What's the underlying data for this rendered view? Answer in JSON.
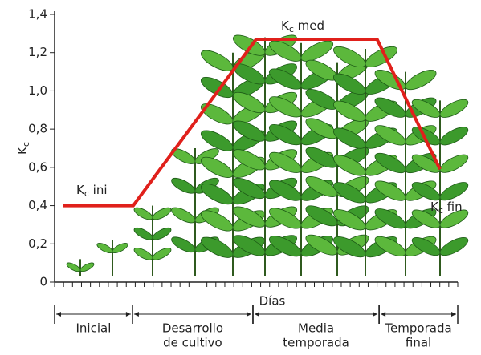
{
  "chart_data": {
    "type": "line",
    "ylabel": {
      "main": "K",
      "sub": "c"
    },
    "xlabel": "Días",
    "ylim": [
      0,
      1.4
    ],
    "yticks": [
      0,
      {
        "value": 0.2,
        "label": "0,2"
      },
      {
        "value": 0.4,
        "label": "0,4"
      },
      {
        "value": 0.6,
        "label": "0,6"
      },
      {
        "value": 0.8,
        "label": "0,8"
      },
      {
        "value": 1.0,
        "label": "1,0"
      },
      {
        "value": 1.2,
        "label": "1,2"
      },
      {
        "value": 1.4,
        "label": "1,4"
      }
    ],
    "xlim": [
      0,
      100
    ],
    "x": [
      2,
      19.5,
      50,
      80,
      95.6
    ],
    "series": [
      {
        "color": "#e0201b",
        "values": [
          0.4,
          0.4,
          1.27,
          1.27,
          0.59
        ]
      }
    ],
    "annotations": [
      {
        "main": "K",
        "sub": "c",
        "rest": " ini"
      },
      {
        "main": "K",
        "sub": "c",
        "rest": " med"
      },
      {
        "main": "K",
        "sub": "c",
        "rest": " fin"
      }
    ],
    "stages": [
      {
        "start": 0,
        "end": 19.3,
        "lines": [
          "Inicial"
        ]
      },
      {
        "start": 19.3,
        "end": 49.2,
        "lines": [
          "Desarrollo",
          "de cultivo"
        ]
      },
      {
        "start": 49.2,
        "end": 80.5,
        "lines": [
          "Media",
          "temporada"
        ]
      },
      {
        "start": 80.5,
        "end": 100,
        "lines": [
          "Temporada",
          "final"
        ]
      }
    ]
  }
}
